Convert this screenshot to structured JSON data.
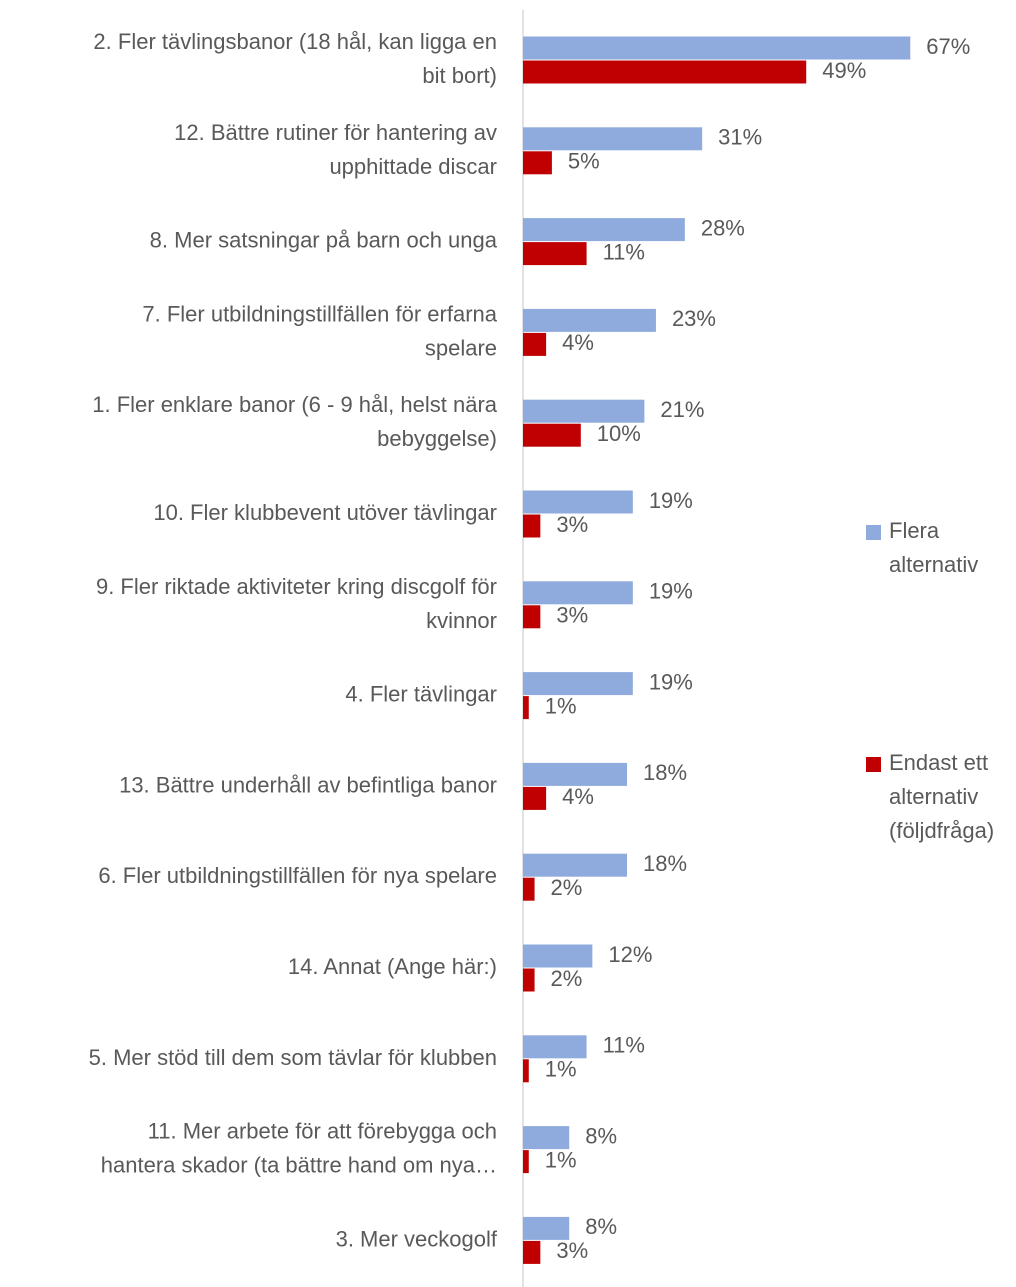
{
  "chart_data": {
    "type": "bar",
    "orientation": "horizontal",
    "categories": [
      "2. Fler tävlingsbanor (18 hål, kan ligga en\nbit bort)",
      "12. Bättre rutiner för hantering av\nupphittade discar",
      "8. Mer satsningar på barn och unga",
      "7. Fler utbildningstillfällen för erfarna\nspelare",
      "1. Fler enklare banor (6 - 9 hål, helst nära\nbebyggelse)",
      "10. Fler klubbevent utöver tävlingar",
      "9. Fler riktade aktiviteter kring discgolf för\nkvinnor",
      "4. Fler tävlingar",
      "13. Bättre underhåll av befintliga banor",
      "6. Fler utbildningstillfällen för nya spelare",
      "14. Annat (Ange här:)",
      "5. Mer stöd till dem som tävlar för klubben",
      "11. Mer arbete för att förebygga och\nhantera skador (ta bättre hand om nya…",
      "3. Mer veckogolf"
    ],
    "series": [
      {
        "name": "Flera\nalternativ",
        "color": "#8faadc",
        "values": [
          67,
          31,
          28,
          23,
          21,
          19,
          19,
          19,
          18,
          18,
          12,
          11,
          8,
          8
        ],
        "value_labels": [
          "67%",
          "31%",
          "28%",
          "23%",
          "21%",
          "19%",
          "19%",
          "19%",
          "18%",
          "18%",
          "12%",
          "11%",
          "8%",
          "8%"
        ]
      },
      {
        "name": "Endast ett\nalternativ\n(följdfråga)",
        "color": "#c00000",
        "values": [
          49,
          5,
          11,
          4,
          10,
          3,
          3,
          1,
          4,
          2,
          2,
          1,
          1,
          3
        ],
        "value_labels": [
          "49%",
          "5%",
          "11%",
          "4%",
          "10%",
          "3%",
          "3%",
          "1%",
          "4%",
          "2%",
          "2%",
          "1%",
          "1%",
          "3%"
        ]
      }
    ],
    "legend": "right"
  }
}
